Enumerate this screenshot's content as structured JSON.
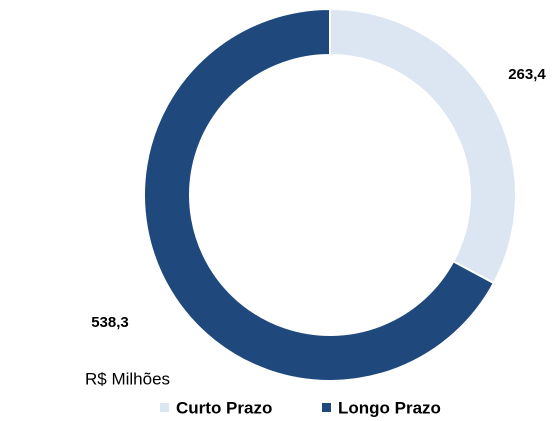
{
  "chart_data": {
    "type": "donut",
    "categories": [
      "Curto Prazo",
      "Longo Prazo"
    ],
    "values": [
      263.4,
      538.3
    ],
    "value_labels": [
      "263,4",
      "538,3"
    ],
    "colors": [
      "#dce6f2",
      "#1f497d"
    ],
    "note": "R$ Milhões",
    "legend": "bottom"
  }
}
